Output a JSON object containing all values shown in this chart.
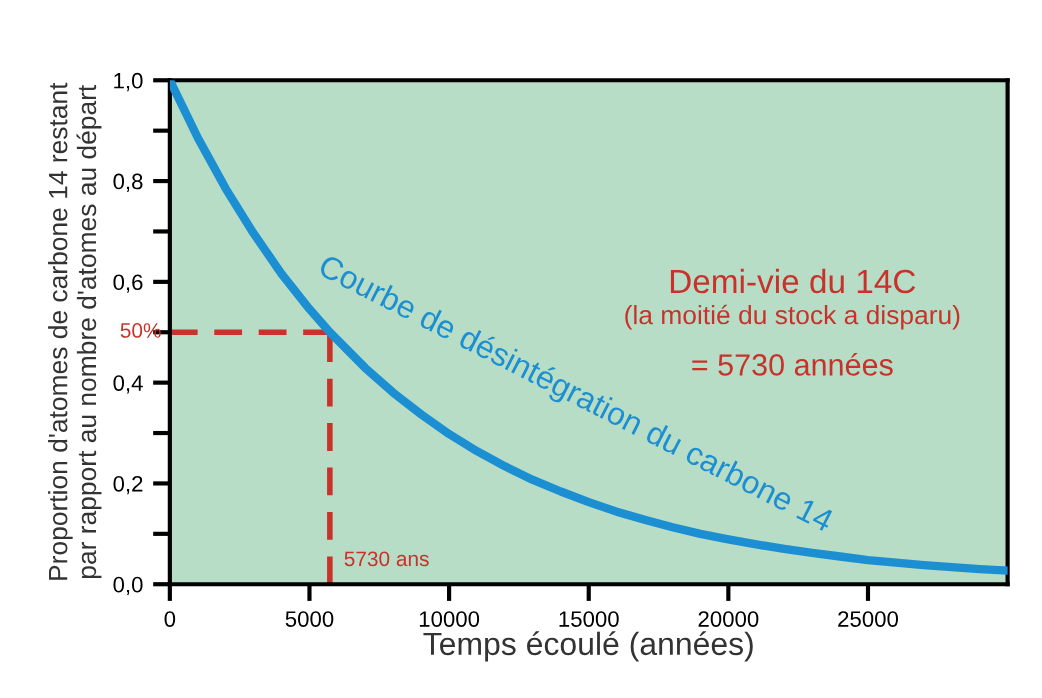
{
  "chart_data": {
    "type": "line",
    "xlabel": "Temps écoulé (années)",
    "ylabel": "Proportion d'atomes de carbone 14 restant\npar rapport au nombre d'atomes au départ",
    "x": [
      0,
      1000,
      2000,
      3000,
      4000,
      5000,
      5730,
      7000,
      8000,
      9000,
      10000,
      11000,
      12000,
      13000,
      14000,
      15000,
      16000,
      17000,
      18000,
      19000,
      20000,
      21000,
      22000,
      23000,
      24000,
      25000,
      26000,
      27000,
      28000,
      29000,
      30000
    ],
    "series": [
      {
        "name": "Courbe de désintégration du carbone 14",
        "color": "#1b8fd2",
        "values": [
          1.0,
          0.886,
          0.785,
          0.696,
          0.616,
          0.546,
          0.5,
          0.429,
          0.38,
          0.337,
          0.298,
          0.264,
          0.234,
          0.207,
          0.184,
          0.163,
          0.144,
          0.128,
          0.113,
          0.1,
          0.089,
          0.079,
          0.07,
          0.062,
          0.055,
          0.048,
          0.043,
          0.038,
          0.034,
          0.03,
          0.027
        ]
      }
    ],
    "xlim": [
      0,
      30000
    ],
    "ylim": [
      0,
      1.0
    ],
    "xticks": [
      0,
      5000,
      10000,
      15000,
      20000,
      25000
    ],
    "yticks": [
      {
        "value": 0,
        "label": "0,0"
      },
      {
        "value": 0.1,
        "label": null
      },
      {
        "value": 0.2,
        "label": "0,2"
      },
      {
        "value": 0.3,
        "label": null
      },
      {
        "value": 0.4,
        "label": "0,4"
      },
      {
        "value": 0.5,
        "label": null
      },
      {
        "value": 0.6,
        "label": "0,6"
      },
      {
        "value": 0.7,
        "label": null
      },
      {
        "value": 0.8,
        "label": "0,8"
      },
      {
        "value": 0.9,
        "label": null
      },
      {
        "value": 1.0,
        "label": "1,0"
      }
    ],
    "ref_lines": [
      {
        "axis": "y",
        "value": 0.5,
        "label": "50%",
        "color": "#c8322a",
        "line_style": "dashed"
      },
      {
        "axis": "x",
        "value": 5730,
        "label": "5730 ans",
        "color": "#c8322a",
        "line_style": "dashed"
      }
    ],
    "annotations": [
      "Demi-vie du 14C",
      "(la moitié du stock a disparu)",
      "= 5730 années"
    ],
    "grid": false,
    "legend": false,
    "marker": "none",
    "line_style": "solid"
  }
}
